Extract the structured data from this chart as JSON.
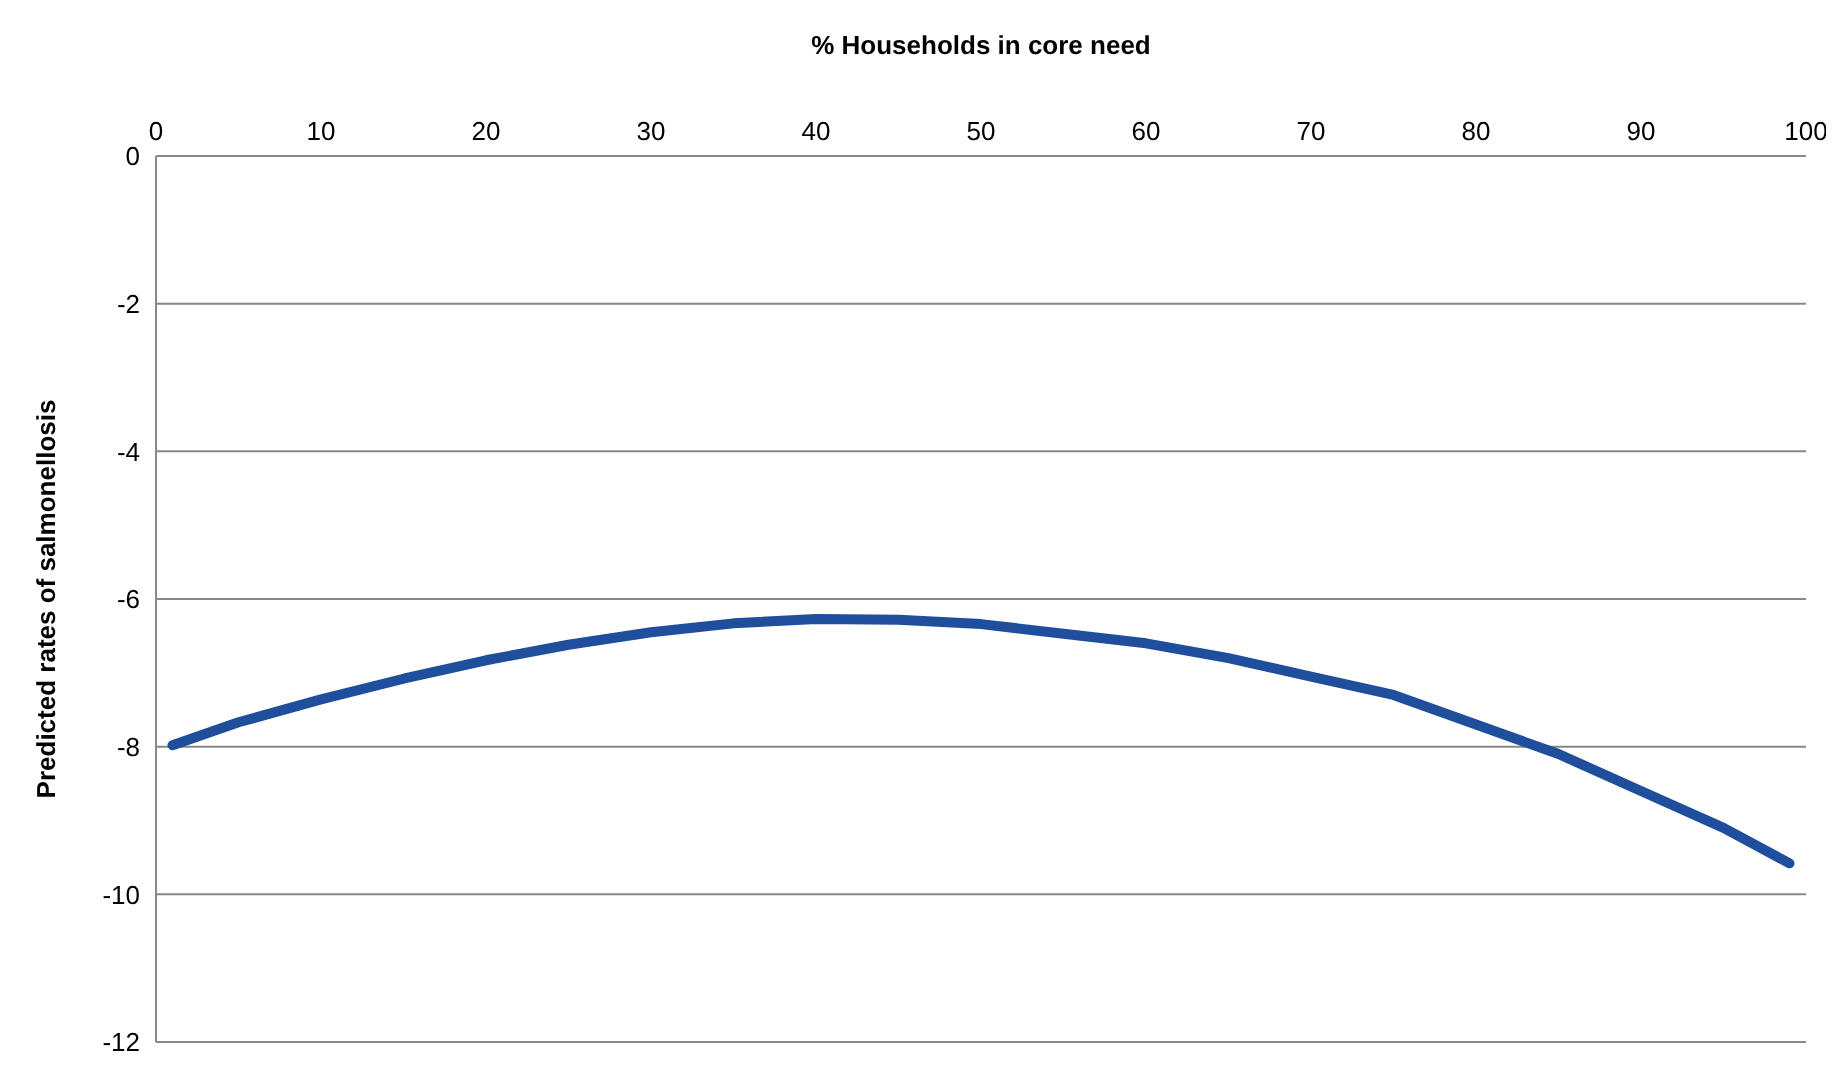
{
  "chart_data": {
    "type": "line",
    "xlabel": "% Households in core need",
    "ylabel": "Predicted rates of salmonellosis",
    "x": [
      1,
      5,
      10,
      15,
      20,
      25,
      30,
      35,
      40,
      45,
      50,
      55,
      60,
      65,
      70,
      75,
      80,
      85,
      90,
      95,
      99
    ],
    "series": [
      {
        "color": "#1f4e9c",
        "values": [
          -7.98,
          -7.67,
          -7.36,
          -7.08,
          -6.83,
          -6.62,
          -6.45,
          -6.33,
          -6.27,
          -6.28,
          -6.34,
          -6.47,
          -6.6,
          -6.8,
          -7.05,
          -7.3,
          -7.7,
          -8.1,
          -8.6,
          -9.1,
          -9.58
        ]
      }
    ],
    "xlim": [
      0,
      100
    ],
    "xticks": [
      0,
      10,
      20,
      30,
      40,
      50,
      60,
      70,
      80,
      90,
      100
    ],
    "ylim": [
      -12,
      0
    ],
    "yticks": [
      0,
      -2,
      -4,
      -6,
      -8,
      -10,
      -12
    ],
    "grid": "y",
    "marker": "none",
    "line_style": "solid"
  }
}
